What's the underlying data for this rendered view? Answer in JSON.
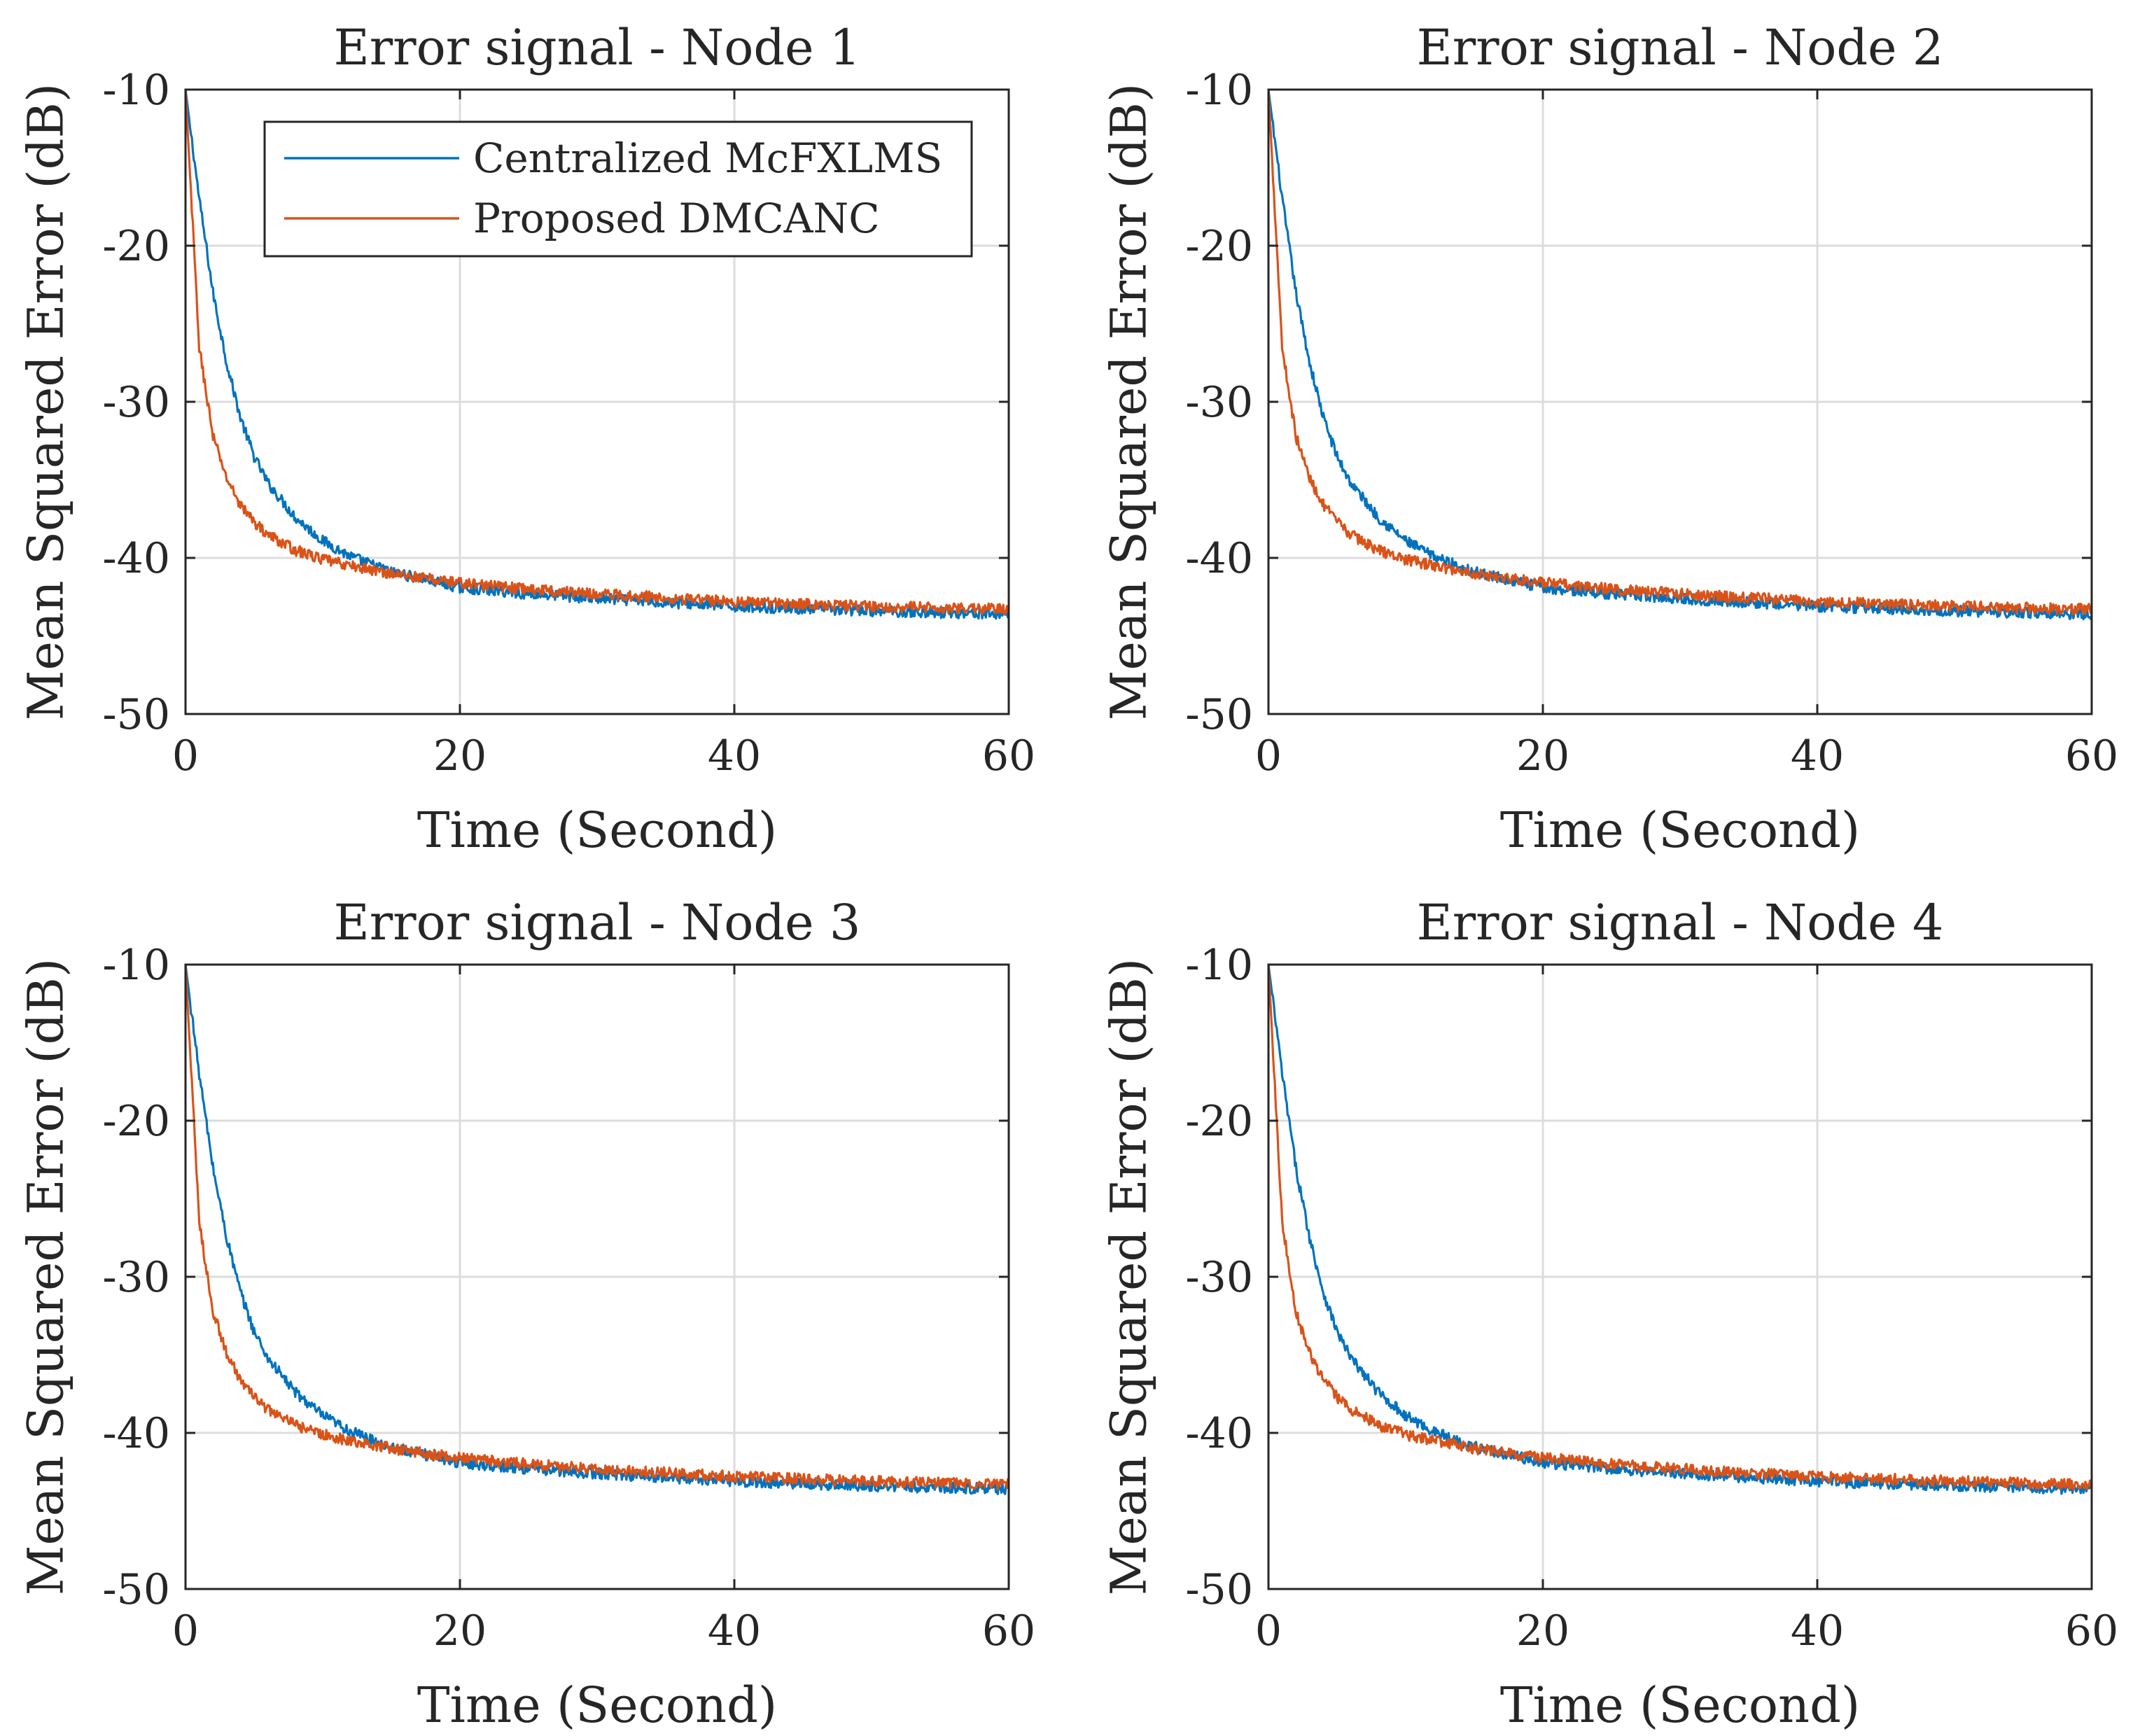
{
  "figure": {
    "colors": {
      "centralized": "#0072bd",
      "proposed": "#d95319",
      "axis": "#262626",
      "grid": "#dcdcdc",
      "background": "#ffffff"
    }
  },
  "chart_data": [
    {
      "type": "line",
      "title": "Error signal - Node 1",
      "xlabel": "Time (Second)",
      "ylabel": "Mean Squared Error (dB)",
      "xlim": [
        0,
        60
      ],
      "ylim": [
        -50,
        -10
      ],
      "xticks": [
        0,
        20,
        40,
        60
      ],
      "yticks": [
        -10,
        -20,
        -30,
        -40,
        -50
      ],
      "xtick_labels": [
        "0",
        "20",
        "40",
        "60"
      ],
      "ytick_labels": [
        "-10",
        "-20",
        "-30",
        "-40",
        "-50"
      ],
      "grid": true,
      "legend": {
        "position": "top-right",
        "entries": [
          "Centralized McFXLMS",
          "Proposed DMCANC"
        ]
      },
      "x": [
        0,
        1,
        2,
        3,
        4,
        5,
        6,
        8,
        10,
        12,
        15,
        20,
        25,
        30,
        40,
        50,
        60
      ],
      "series": [
        {
          "name": "Centralized McFXLMS",
          "color": "#0072bd",
          "values": [
            -10,
            -17,
            -23,
            -27.5,
            -31,
            -33.5,
            -35.2,
            -37.4,
            -38.9,
            -39.9,
            -40.9,
            -41.9,
            -42.3,
            -42.6,
            -43.1,
            -43.4,
            -43.6
          ]
        },
        {
          "name": "Proposed DMCANC",
          "color": "#d95319",
          "values": [
            -10,
            -26.5,
            -32.2,
            -34.9,
            -36.6,
            -37.7,
            -38.5,
            -39.5,
            -40.1,
            -40.5,
            -41,
            -41.6,
            -42,
            -42.3,
            -42.8,
            -43.1,
            -43.3
          ]
        }
      ]
    },
    {
      "type": "line",
      "title": "Error signal - Node 2",
      "xlabel": "Time (Second)",
      "ylabel": "Mean Squared Error (dB)",
      "xlim": [
        0,
        60
      ],
      "ylim": [
        -50,
        -10
      ],
      "xticks": [
        0,
        20,
        40,
        60
      ],
      "yticks": [
        -10,
        -20,
        -30,
        -40,
        -50
      ],
      "xtick_labels": [
        "0",
        "20",
        "40",
        "60"
      ],
      "ytick_labels": [
        "-10",
        "-20",
        "-30",
        "-40",
        "-50"
      ],
      "grid": true,
      "x": [
        0,
        1,
        2,
        3,
        4,
        5,
        6,
        8,
        10,
        12,
        15,
        20,
        25,
        30,
        40,
        50,
        60
      ],
      "series": [
        {
          "name": "Centralized McFXLMS",
          "color": "#0072bd",
          "values": [
            -10,
            -17,
            -23,
            -27.5,
            -31,
            -33.5,
            -35.2,
            -37.4,
            -38.9,
            -39.9,
            -40.9,
            -41.9,
            -42.3,
            -42.6,
            -43.1,
            -43.4,
            -43.6
          ]
        },
        {
          "name": "Proposed DMCANC",
          "color": "#d95319",
          "values": [
            -10,
            -26.5,
            -32.2,
            -34.9,
            -36.6,
            -37.7,
            -38.5,
            -39.5,
            -40.1,
            -40.5,
            -41,
            -41.6,
            -42,
            -42.3,
            -42.8,
            -43.1,
            -43.3
          ]
        }
      ]
    },
    {
      "type": "line",
      "title": "Error signal - Node 3",
      "xlabel": "Time (Second)",
      "ylabel": "Mean Squared Error (dB)",
      "xlim": [
        0,
        60
      ],
      "ylim": [
        -50,
        -10
      ],
      "xticks": [
        0,
        20,
        40,
        60
      ],
      "yticks": [
        -10,
        -20,
        -30,
        -40,
        -50
      ],
      "xtick_labels": [
        "0",
        "20",
        "40",
        "60"
      ],
      "ytick_labels": [
        "-10",
        "-20",
        "-30",
        "-40",
        "-50"
      ],
      "grid": true,
      "x": [
        0,
        1,
        2,
        3,
        4,
        5,
        6,
        8,
        10,
        12,
        15,
        20,
        25,
        30,
        40,
        50,
        60
      ],
      "series": [
        {
          "name": "Centralized McFXLMS",
          "color": "#0072bd",
          "values": [
            -10,
            -17,
            -23,
            -27.5,
            -31,
            -33.5,
            -35.2,
            -37.4,
            -38.9,
            -39.9,
            -40.9,
            -41.9,
            -42.3,
            -42.6,
            -43.1,
            -43.4,
            -43.6
          ]
        },
        {
          "name": "Proposed DMCANC",
          "color": "#d95319",
          "values": [
            -10,
            -26.5,
            -32.2,
            -34.9,
            -36.6,
            -37.7,
            -38.5,
            -39.5,
            -40.1,
            -40.5,
            -41,
            -41.6,
            -42,
            -42.3,
            -42.8,
            -43.1,
            -43.3
          ]
        }
      ]
    },
    {
      "type": "line",
      "title": "Error signal - Node 4",
      "xlabel": "Time (Second)",
      "ylabel": "Mean Squared Error (dB)",
      "xlim": [
        0,
        60
      ],
      "ylim": [
        -50,
        -10
      ],
      "xticks": [
        0,
        20,
        40,
        60
      ],
      "yticks": [
        -10,
        -20,
        -30,
        -40,
        -50
      ],
      "xtick_labels": [
        "0",
        "20",
        "40",
        "60"
      ],
      "ytick_labels": [
        "-10",
        "-20",
        "-30",
        "-40",
        "-50"
      ],
      "grid": true,
      "x": [
        0,
        1,
        2,
        3,
        4,
        5,
        6,
        8,
        10,
        12,
        15,
        20,
        25,
        30,
        40,
        50,
        60
      ],
      "series": [
        {
          "name": "Centralized McFXLMS",
          "color": "#0072bd",
          "values": [
            -10,
            -17,
            -23,
            -27.5,
            -31,
            -33.5,
            -35.2,
            -37.4,
            -38.9,
            -39.9,
            -40.9,
            -41.9,
            -42.3,
            -42.6,
            -43.1,
            -43.4,
            -43.6
          ]
        },
        {
          "name": "Proposed DMCANC",
          "color": "#d95319",
          "values": [
            -10,
            -26.5,
            -32.2,
            -34.9,
            -36.6,
            -37.7,
            -38.5,
            -39.5,
            -40.1,
            -40.5,
            -41,
            -41.6,
            -42,
            -42.3,
            -42.8,
            -43.1,
            -43.3
          ]
        }
      ]
    }
  ]
}
